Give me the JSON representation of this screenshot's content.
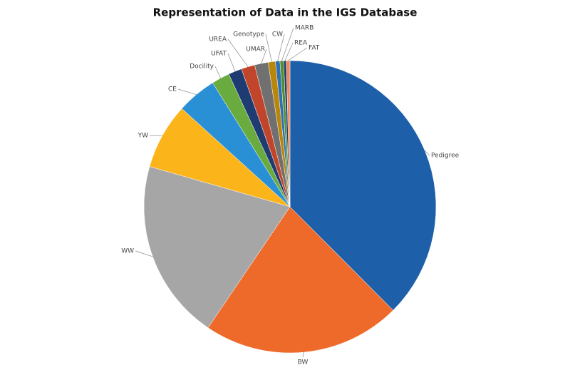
{
  "chart_data": {
    "type": "pie",
    "title": "Representation of Data in the IGS Database",
    "categories": [
      "Pedigree",
      "BW",
      "WW",
      "YW",
      "CE",
      "Docility",
      "UFAT",
      "UREA",
      "UMAR",
      "Genotype",
      "CW",
      "MARB",
      "REA",
      "FAT"
    ],
    "values": [
      37.6,
      22,
      20,
      7.3,
      4.4,
      2,
      1.5,
      1.5,
      1.5,
      0.8,
      0.5,
      0.4,
      0.3,
      0.4
    ],
    "colors": [
      "#1d5fa8",
      "#ee6a2b",
      "#a6a6a6",
      "#fbb41a",
      "#2a90d6",
      "#6aab3f",
      "#1e3c72",
      "#c0452a",
      "#707070",
      "#b8860b",
      "#2f6fb5",
      "#4f8f2f",
      "#253f6e",
      "#f08a5a"
    ]
  }
}
